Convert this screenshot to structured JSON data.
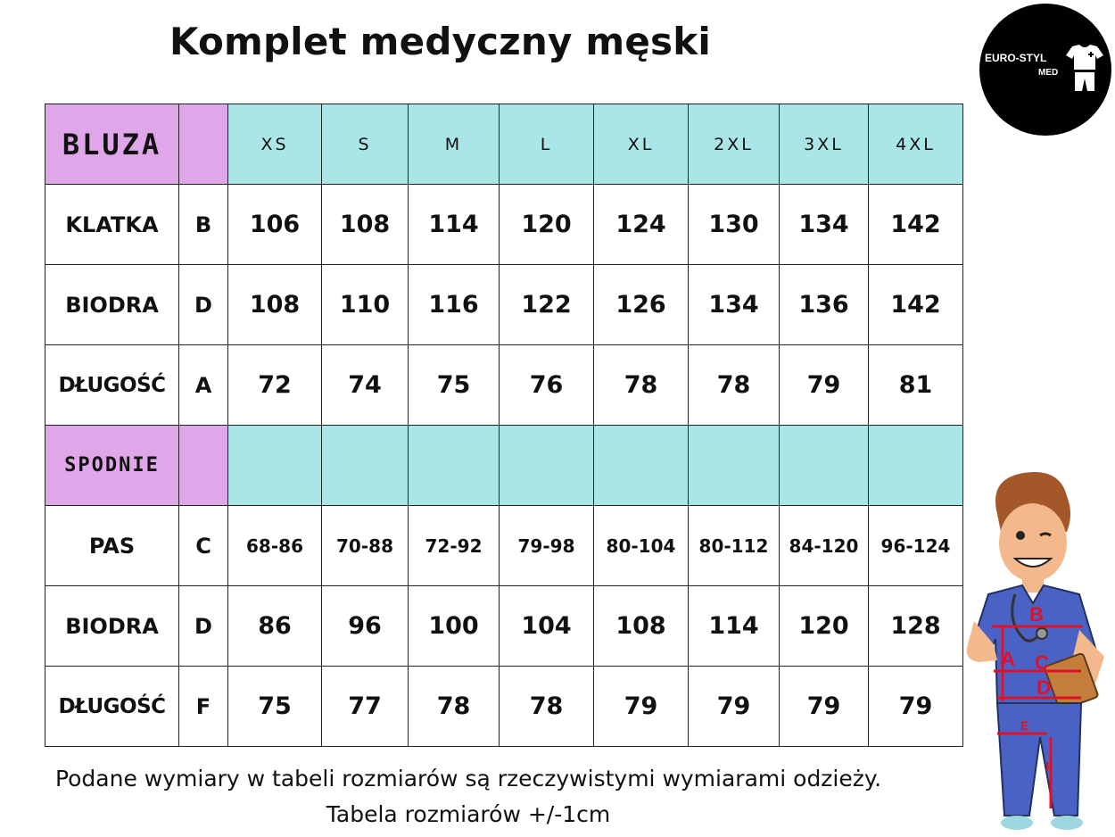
{
  "title": "Komplet medyczny męski",
  "logo": {
    "line1": "EURO-STYL",
    "line2": "MED",
    "icon": "scrubs-icon"
  },
  "sizes": [
    "XS",
    "S",
    "M",
    "L",
    "XL",
    "2XL",
    "3XL",
    "4XL"
  ],
  "bluza": {
    "label": "BLUZA",
    "rows": [
      {
        "name": "KLATKA",
        "code": "B",
        "values": [
          "106",
          "108",
          "114",
          "120",
          "124",
          "130",
          "134",
          "142"
        ]
      },
      {
        "name": "BIODRA",
        "code": "D",
        "values": [
          "108",
          "110",
          "116",
          "122",
          "126",
          "134",
          "136",
          "142"
        ]
      },
      {
        "name": "DŁUGOŚĆ",
        "code": "A",
        "values": [
          "72",
          "74",
          "75",
          "76",
          "78",
          "78",
          "79",
          "81"
        ]
      }
    ]
  },
  "spodnie": {
    "label": "SPODNIE",
    "rows": [
      {
        "name": "PAS",
        "code": "C",
        "values": [
          "68-86",
          "70-88",
          "72-92",
          "79-98",
          "80-104",
          "80-112",
          "84-120",
          "96-124"
        ]
      },
      {
        "name": "BIODRA",
        "code": "D",
        "values": [
          "86",
          "96",
          "100",
          "104",
          "108",
          "114",
          "120",
          "128"
        ]
      },
      {
        "name": "DŁUGOŚĆ",
        "code": "F",
        "values": [
          "75",
          "77",
          "78",
          "78",
          "79",
          "79",
          "79",
          "79"
        ]
      }
    ]
  },
  "figure": {
    "labels": [
      "B",
      "A",
      "C",
      "D",
      "E",
      "F"
    ]
  },
  "footer": {
    "line1": "Podane wymiary w tabeli rozmiarów są rzeczywistymi wymiarami odzieży.",
    "line2": "Tabela rozmiarów +/-1cm"
  },
  "colors": {
    "purple": "#dfa6ea",
    "cyan": "#aae6e8",
    "measure": "#e0102a",
    "scrubs": "#4a62c4"
  }
}
